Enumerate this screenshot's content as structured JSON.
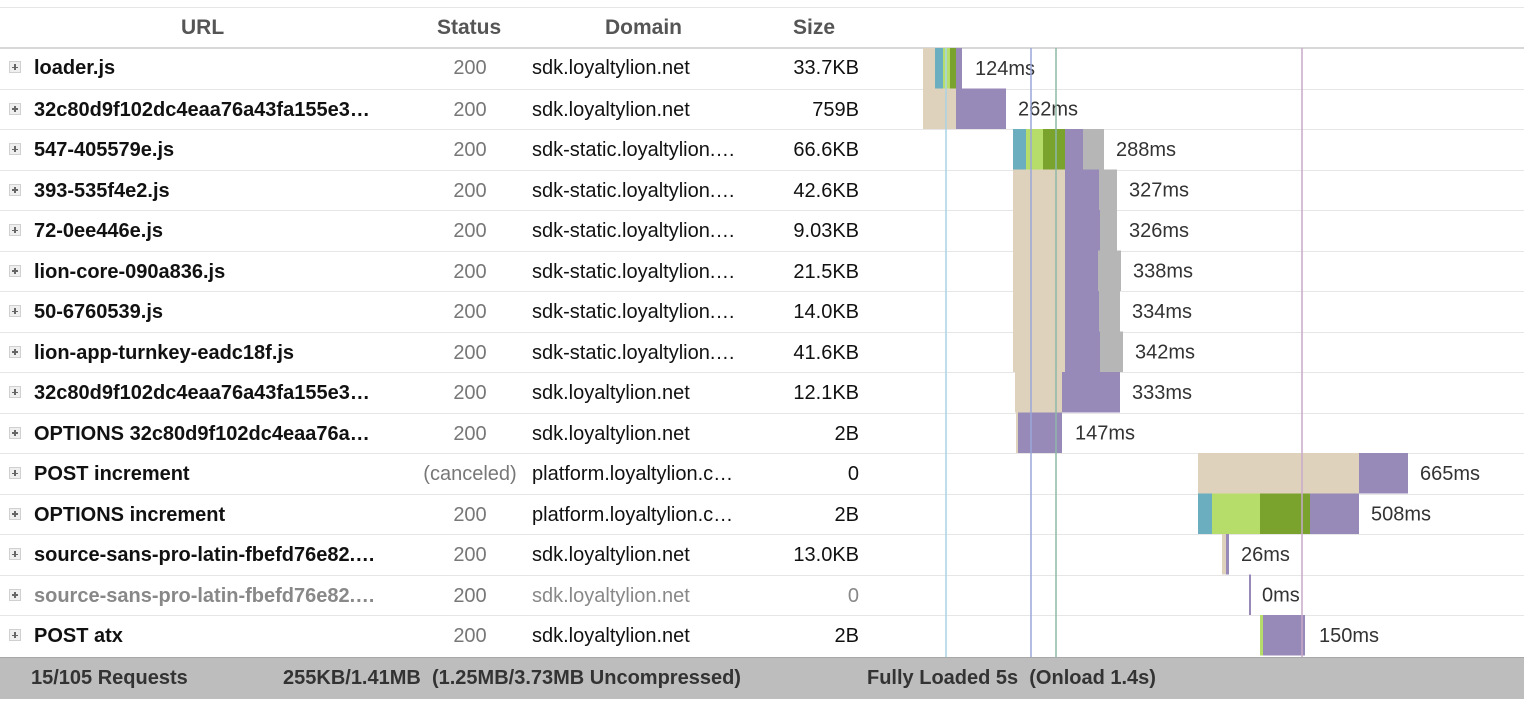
{
  "columns": {
    "url": "URL",
    "status": "Status",
    "domain": "Domain",
    "size": "Size"
  },
  "requests": [
    {
      "url": "loader.js",
      "status": "200",
      "domain": "sdk.loyaltylion.net",
      "size": "33.7KB",
      "duration": "124ms"
    },
    {
      "url": "32c80d9f102dc4eaa76a43fa155e3…",
      "status": "200",
      "domain": "sdk.loyaltylion.net",
      "size": "759B",
      "duration": "262ms"
    },
    {
      "url": "547-405579e.js",
      "status": "200",
      "domain": "sdk-static.loyaltylion.…",
      "size": "66.6KB",
      "duration": "288ms"
    },
    {
      "url": "393-535f4e2.js",
      "status": "200",
      "domain": "sdk-static.loyaltylion.…",
      "size": "42.6KB",
      "duration": "327ms"
    },
    {
      "url": "72-0ee446e.js",
      "status": "200",
      "domain": "sdk-static.loyaltylion.…",
      "size": "9.03KB",
      "duration": "326ms"
    },
    {
      "url": "lion-core-090a836.js",
      "status": "200",
      "domain": "sdk-static.loyaltylion.…",
      "size": "21.5KB",
      "duration": "338ms"
    },
    {
      "url": "50-6760539.js",
      "status": "200",
      "domain": "sdk-static.loyaltylion.…",
      "size": "14.0KB",
      "duration": "334ms"
    },
    {
      "url": "lion-app-turnkey-eadc18f.js",
      "status": "200",
      "domain": "sdk-static.loyaltylion.…",
      "size": "41.6KB",
      "duration": "342ms"
    },
    {
      "url": "32c80d9f102dc4eaa76a43fa155e3…",
      "status": "200",
      "domain": "sdk.loyaltylion.net",
      "size": "12.1KB",
      "duration": "333ms"
    },
    {
      "url": "OPTIONS 32c80d9f102dc4eaa76a…",
      "status": "200",
      "domain": "sdk.loyaltylion.net",
      "size": "2B",
      "duration": "147ms"
    },
    {
      "url": "POST increment",
      "status": "(canceled)",
      "domain": "platform.loyaltylion.c…",
      "size": "0",
      "duration": "665ms"
    },
    {
      "url": "OPTIONS increment",
      "status": "200",
      "domain": "platform.loyaltylion.c…",
      "size": "2B",
      "duration": "508ms"
    },
    {
      "url": "source-sans-pro-latin-fbefd76e82.…",
      "status": "200",
      "domain": "sdk.loyaltylion.net",
      "size": "13.0KB",
      "duration": "26ms"
    },
    {
      "url": "source-sans-pro-latin-fbefd76e82.…",
      "status": "200",
      "domain": "sdk.loyaltylion.net",
      "size": "0",
      "duration": "0ms"
    },
    {
      "url": "POST atx",
      "status": "200",
      "domain": "sdk.loyaltylion.net",
      "size": "2B",
      "duration": "150ms"
    }
  ],
  "footer": {
    "requests": "15/105 Requests",
    "transfer": "255KB/1.41MB  (1.25MB/3.73MB Uncompressed)",
    "loaded": "Fully Loaded 5s  (Onload 1.4s)"
  },
  "colors": {
    "queued": "#ded2bc",
    "connect": "#6aaebf",
    "ssl": "#b6dd6a",
    "waiting": "#7aa32e",
    "download": "#978ab9",
    "cache": "#b6b6b6",
    "dom_content_loaded": "#a9d3e6",
    "onload_start": "#9aa6d8",
    "onload_end": "#8db8a8",
    "load_event": "#c7a9c9"
  }
}
